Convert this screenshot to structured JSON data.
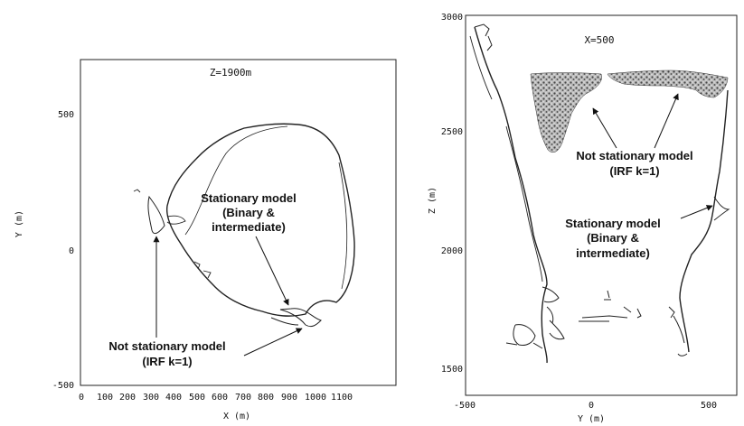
{
  "chart_data": [
    {
      "type": "contour",
      "title": "Z=1900m",
      "xlabel": "X (m)",
      "ylabel": "Y (m)",
      "xlim": [
        0,
        1100
      ],
      "ylim": [
        -500,
        700
      ],
      "x_ticks": [
        "0",
        "100",
        "200",
        "300",
        "400",
        "500",
        "600",
        "700",
        "800",
        "900",
        "1000",
        "1100"
      ],
      "y_ticks": [
        "-500",
        "0",
        "500"
      ],
      "annotations": [
        {
          "text": [
            "Stationary model",
            "(Binary &",
            "intermediate)"
          ]
        },
        {
          "text": [
            "Not stationary model",
            "(IRF k=1)"
          ]
        }
      ]
    },
    {
      "type": "contour",
      "title": "X=500",
      "xlabel": "Y (m)",
      "ylabel": "Z (m)",
      "xlim": [
        -500,
        650
      ],
      "ylim": [
        1420,
        3000
      ],
      "x_ticks": [
        "-500",
        "0",
        "500"
      ],
      "y_ticks": [
        "1500",
        "2000",
        "2500",
        "3000"
      ],
      "annotations": [
        {
          "text": [
            "Not stationary model",
            "(IRF k=1)"
          ]
        },
        {
          "text": [
            "Stationary model",
            "(Binary &",
            "intermediate)"
          ]
        }
      ]
    }
  ]
}
